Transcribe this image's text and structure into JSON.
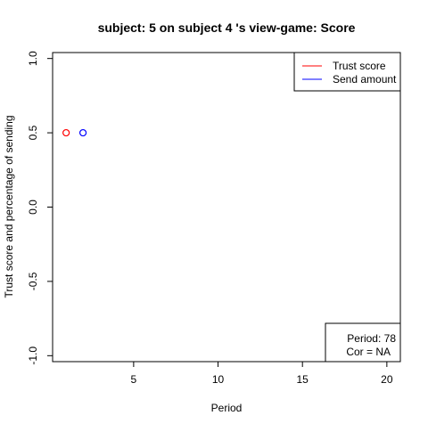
{
  "chart_data": {
    "type": "scatter",
    "title": "subject:  5  on subject  4 's view-game:  Score",
    "xlabel": "Period",
    "ylabel": "Trust score and percentage of sending",
    "xlim": [
      0.2,
      20.8
    ],
    "ylim": [
      -1.04,
      1.04
    ],
    "x_ticks": [
      5,
      10,
      15,
      20
    ],
    "y_ticks": [
      -1.0,
      -0.5,
      0.0,
      0.5,
      1.0
    ],
    "y_tick_labels": [
      "-1.0",
      "-0.5",
      "0.0",
      "0.5",
      "1.0"
    ],
    "grid": false,
    "legend_position": "top-right",
    "series": [
      {
        "name": "Trust score",
        "color": "#ff0000",
        "points": [
          {
            "x": 1,
            "y": 0.5
          }
        ]
      },
      {
        "name": "Send amount",
        "color": "#0000ff",
        "points": [
          {
            "x": 2,
            "y": 0.5
          }
        ]
      }
    ],
    "info_box": {
      "period_text": "Period:  78",
      "cor_text": "Cor =  NA"
    }
  }
}
